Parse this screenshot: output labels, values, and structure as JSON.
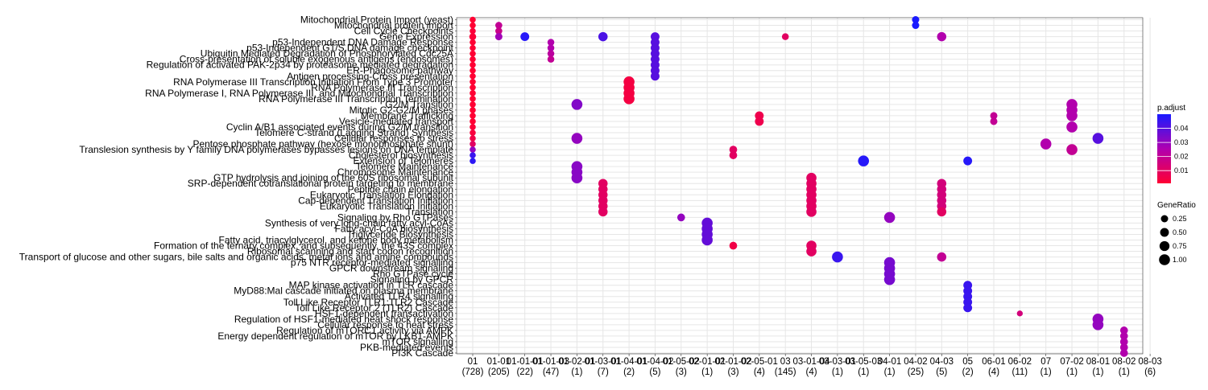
{
  "chart_data": {
    "type": "dotplot",
    "title": "",
    "xlabel": "",
    "ylabel": "",
    "grid": true,
    "legend_position": "right",
    "x_categories": [
      {
        "label": "01",
        "count": "(728)"
      },
      {
        "label": "01-01",
        "count": "(205)"
      },
      {
        "label": "01-01-01",
        "count": "(22)"
      },
      {
        "label": "01-01-03",
        "count": "(47)"
      },
      {
        "label": "01-02-01",
        "count": "(1)"
      },
      {
        "label": "01-03-01",
        "count": "(7)"
      },
      {
        "label": "01-04-01",
        "count": "(2)"
      },
      {
        "label": "01-04-02",
        "count": "(5)"
      },
      {
        "label": "01-05-02",
        "count": "(3)"
      },
      {
        "label": "02-01-01",
        "count": "(1)"
      },
      {
        "label": "02-01-02",
        "count": "(3)"
      },
      {
        "label": "02-05-01",
        "count": "(4)"
      },
      {
        "label": "03",
        "count": "(145)"
      },
      {
        "label": "03-01-04",
        "count": "(4)"
      },
      {
        "label": "03-03-01",
        "count": "(1)"
      },
      {
        "label": "03-05-03",
        "count": "(1)"
      },
      {
        "label": "04-01",
        "count": "(1)"
      },
      {
        "label": "04-02",
        "count": "(25)"
      },
      {
        "label": "04-03",
        "count": "(5)"
      },
      {
        "label": "05",
        "count": "(2)"
      },
      {
        "label": "06-01",
        "count": "(4)"
      },
      {
        "label": "06-02",
        "count": "(11)"
      },
      {
        "label": "07",
        "count": "(1)"
      },
      {
        "label": "07-02",
        "count": "(1)"
      },
      {
        "label": "08-01",
        "count": "(1)"
      },
      {
        "label": "08-02",
        "count": "(1)"
      },
      {
        "label": "08-03",
        "count": "(6)"
      }
    ],
    "y_terms": [
      "Mitochondrial Protein Import (yeast)",
      "Mitochondrial protein import",
      "Cell Cycle Checkpoints",
      "Gene Expression",
      "p53-Independent DNA Damage Response",
      "p53-Independent G1/S DNA damage checkpoint",
      "Ubiquitin Mediated Degradation of Phosphorylated Cdc25A",
      "Cross-presentation of soluble exogenous antigens (endosomes)",
      "Regulation of activated PAK-2p34 by proteasome mediated degradation",
      "ER-Phagosome pathway",
      "Antigen processing-Cross presentation",
      "RNA Polymerase III Transcription Initiation From Type 3 Promoter",
      "RNA Polymerase III Transcription",
      "RNA Polymerase I, RNA Polymerase III, and Mitochondrial Transcription",
      "RNA Polymerase III Transcription Termination",
      "G2/M Transition",
      "Mitotic G2-G2/M phases",
      "Membrane Trafficking",
      "Vesicle-mediated transport",
      "Cyclin A/B1 associated events during G2/M transition",
      "Telomere C-strand (Lagging Strand) Synthesis",
      "Cellular responses to stress",
      "Pentose phosphate pathway (hexose monophosphate shunt)",
      "Translesion synthesis by Y family DNA polymerases bypasses lesions on DNA template",
      "Cholesterol biosynthesis",
      "Extension of Telomeres",
      "Telomere Maintenance",
      "Chromosome Maintenance",
      "GTP hydrolysis and joining of the 60S ribosomal subunit",
      "SRP-dependent cotranslational protein targeting to membrane",
      "Peptide chain elongation",
      "Eukaryotic Translation Elongation",
      "Cap-dependent Translation Initiation",
      "Eukaryotic Translation Initiation",
      "Translation",
      "Signaling by Rho GTPases",
      "Synthesis of very long-chain fatty acyl-CoAs",
      "Fatty acyl-CoA biosynthesis",
      "Triglyceride Biosynthesis",
      "Fatty acid, triacylglycerol, and ketone body metabolism",
      "Formation of the ternary complex, and subsequently, the 43S complex",
      "Ribosomal scanning and start codon recognition",
      "Transport of glucose and other sugars, bile salts and organic acids, metal ions and amine compounds",
      "p75 NTR receptor-mediated signalling",
      "GPCR downstream signaling",
      "Rho GTPase cycle",
      "Signaling by GPCR",
      "MAP kinase activation in TLR cascade",
      "MyD88:Mal cascade initiated on plasma membrane",
      "Activated TLR4 signalling",
      "Toll Like Receptor TLR1:TLR2 Cascade",
      "Toll Like Receptor 2 (TLR2) Cascade",
      "HSF1-dependent transactivation",
      "Regulation of HSF1-mediated heat shock response",
      "Cellular response to heat stress",
      "Regulation of mTORC1 activity via AMPK",
      "Energy dependent regulation of mTOR by LKB1-AMPK",
      "mTOR signalling",
      "PKB-mediated events",
      "PI3K Cascade"
    ],
    "points": [
      {
        "x": 0,
        "y": 0,
        "size": 0.12,
        "padj": 0.001
      },
      {
        "x": 0,
        "y": 1,
        "size": 0.12,
        "padj": 0.001
      },
      {
        "x": 0,
        "y": 2,
        "size": 0.12,
        "padj": 0.002
      },
      {
        "x": 0,
        "y": 3,
        "size": 0.2,
        "padj": 0.002
      },
      {
        "x": 0,
        "y": 4,
        "size": 0.12,
        "padj": 0.001
      },
      {
        "x": 0,
        "y": 5,
        "size": 0.12,
        "padj": 0.001
      },
      {
        "x": 0,
        "y": 6,
        "size": 0.12,
        "padj": 0.001
      },
      {
        "x": 0,
        "y": 7,
        "size": 0.12,
        "padj": 0.001
      },
      {
        "x": 0,
        "y": 8,
        "size": 0.12,
        "padj": 0.001
      },
      {
        "x": 0,
        "y": 9,
        "size": 0.12,
        "padj": 0.001
      },
      {
        "x": 0,
        "y": 10,
        "size": 0.12,
        "padj": 0.001
      },
      {
        "x": 0,
        "y": 11,
        "size": 0.12,
        "padj": 0.001
      },
      {
        "x": 0,
        "y": 12,
        "size": 0.12,
        "padj": 0.001
      },
      {
        "x": 0,
        "y": 13,
        "size": 0.12,
        "padj": 0.001
      },
      {
        "x": 0,
        "y": 14,
        "size": 0.12,
        "padj": 0.001
      },
      {
        "x": 0,
        "y": 15,
        "size": 0.12,
        "padj": 0.001
      },
      {
        "x": 0,
        "y": 16,
        "size": 0.12,
        "padj": 0.001
      },
      {
        "x": 0,
        "y": 17,
        "size": 0.12,
        "padj": 0.001
      },
      {
        "x": 0,
        "y": 18,
        "size": 0.12,
        "padj": 0.001
      },
      {
        "x": 0,
        "y": 19,
        "size": 0.12,
        "padj": 0.002
      },
      {
        "x": 0,
        "y": 20,
        "size": 0.12,
        "padj": 0.003
      },
      {
        "x": 0,
        "y": 21,
        "size": 0.12,
        "padj": 0.005
      },
      {
        "x": 0,
        "y": 22,
        "size": 0.12,
        "padj": 0.01
      },
      {
        "x": 0,
        "y": 23,
        "size": 0.12,
        "padj": 0.03
      },
      {
        "x": 0,
        "y": 24,
        "size": 0.12,
        "padj": 0.045
      },
      {
        "x": 0,
        "y": 25,
        "size": 0.12,
        "padj": 0.047
      },
      {
        "x": 1,
        "y": 1,
        "size": 0.22,
        "padj": 0.02
      },
      {
        "x": 1,
        "y": 2,
        "size": 0.22,
        "padj": 0.018
      },
      {
        "x": 1,
        "y": 3,
        "size": 0.25,
        "padj": 0.028
      },
      {
        "x": 2,
        "y": 3,
        "size": 0.5,
        "padj": 0.048
      },
      {
        "x": 3,
        "y": 4,
        "size": 0.2,
        "padj": 0.025
      },
      {
        "x": 3,
        "y": 5,
        "size": 0.2,
        "padj": 0.025
      },
      {
        "x": 3,
        "y": 6,
        "size": 0.2,
        "padj": 0.022
      },
      {
        "x": 3,
        "y": 7,
        "size": 0.2,
        "padj": 0.02
      },
      {
        "x": 4,
        "y": 15,
        "size": 1,
        "padj": 0.033
      },
      {
        "x": 4,
        "y": 21,
        "size": 1,
        "padj": 0.03
      },
      {
        "x": 4,
        "y": 26,
        "size": 1,
        "padj": 0.032
      },
      {
        "x": 4,
        "y": 27,
        "size": 1,
        "padj": 0.032
      },
      {
        "x": 4,
        "y": 28,
        "size": 1,
        "padj": 0.032
      },
      {
        "x": 5,
        "y": 3,
        "size": 0.6,
        "padj": 0.042
      },
      {
        "x": 5,
        "y": 29,
        "size": 0.6,
        "padj": 0.01
      },
      {
        "x": 5,
        "y": 30,
        "size": 0.6,
        "padj": 0.01
      },
      {
        "x": 5,
        "y": 31,
        "size": 0.6,
        "padj": 0.01
      },
      {
        "x": 5,
        "y": 32,
        "size": 0.6,
        "padj": 0.01
      },
      {
        "x": 5,
        "y": 33,
        "size": 0.6,
        "padj": 0.01
      },
      {
        "x": 5,
        "y": 34,
        "size": 0.6,
        "padj": 0.01
      },
      {
        "x": 6,
        "y": 11,
        "size": 1,
        "padj": 0.004
      },
      {
        "x": 6,
        "y": 12,
        "size": 1,
        "padj": 0.004
      },
      {
        "x": 6,
        "y": 13,
        "size": 1,
        "padj": 0.004
      },
      {
        "x": 6,
        "y": 14,
        "size": 1,
        "padj": 0.004
      },
      {
        "x": 7,
        "y": 3,
        "size": 0.5,
        "padj": 0.04
      },
      {
        "x": 7,
        "y": 4,
        "size": 0.5,
        "padj": 0.04
      },
      {
        "x": 7,
        "y": 5,
        "size": 0.5,
        "padj": 0.04
      },
      {
        "x": 7,
        "y": 6,
        "size": 0.5,
        "padj": 0.04
      },
      {
        "x": 7,
        "y": 7,
        "size": 0.5,
        "padj": 0.04
      },
      {
        "x": 7,
        "y": 8,
        "size": 0.5,
        "padj": 0.04
      },
      {
        "x": 7,
        "y": 9,
        "size": 0.5,
        "padj": 0.04
      },
      {
        "x": 7,
        "y": 10,
        "size": 0.5,
        "padj": 0.04
      },
      {
        "x": 8,
        "y": 35,
        "size": 0.33,
        "padj": 0.03
      },
      {
        "x": 9,
        "y": 36,
        "size": 1,
        "padj": 0.038
      },
      {
        "x": 9,
        "y": 37,
        "size": 1,
        "padj": 0.038
      },
      {
        "x": 9,
        "y": 38,
        "size": 1,
        "padj": 0.038
      },
      {
        "x": 9,
        "y": 39,
        "size": 1,
        "padj": 0.038
      },
      {
        "x": 10,
        "y": 23,
        "size": 0.33,
        "padj": 0.01
      },
      {
        "x": 10,
        "y": 24,
        "size": 0.33,
        "padj": 0.01
      },
      {
        "x": 10,
        "y": 40,
        "size": 0.33,
        "padj": 0.005
      },
      {
        "x": 11,
        "y": 17,
        "size": 0.5,
        "padj": 0.006
      },
      {
        "x": 11,
        "y": 18,
        "size": 0.5,
        "padj": 0.006
      },
      {
        "x": 12,
        "y": 3,
        "size": 0.2,
        "padj": 0.01
      },
      {
        "x": 13,
        "y": 28,
        "size": 0.8,
        "padj": 0.01
      },
      {
        "x": 13,
        "y": 29,
        "size": 0.8,
        "padj": 0.01
      },
      {
        "x": 13,
        "y": 30,
        "size": 0.8,
        "padj": 0.01
      },
      {
        "x": 13,
        "y": 31,
        "size": 0.8,
        "padj": 0.01
      },
      {
        "x": 13,
        "y": 32,
        "size": 0.8,
        "padj": 0.01
      },
      {
        "x": 13,
        "y": 33,
        "size": 0.8,
        "padj": 0.01
      },
      {
        "x": 13,
        "y": 34,
        "size": 0.8,
        "padj": 0.01
      },
      {
        "x": 13,
        "y": 40,
        "size": 0.8,
        "padj": 0.01
      },
      {
        "x": 13,
        "y": 41,
        "size": 0.8,
        "padj": 0.01
      },
      {
        "x": 14,
        "y": 42,
        "size": 1,
        "padj": 0.045
      },
      {
        "x": 15,
        "y": 25,
        "size": 1,
        "padj": 0.048
      },
      {
        "x": 16,
        "y": 35,
        "size": 1,
        "padj": 0.03
      },
      {
        "x": 16,
        "y": 43,
        "size": 1,
        "padj": 0.035
      },
      {
        "x": 16,
        "y": 44,
        "size": 1,
        "padj": 0.035
      },
      {
        "x": 16,
        "y": 45,
        "size": 1,
        "padj": 0.035
      },
      {
        "x": 16,
        "y": 46,
        "size": 1,
        "padj": 0.035
      },
      {
        "x": 17,
        "y": 0,
        "size": 0.25,
        "padj": 0.05
      },
      {
        "x": 17,
        "y": 1,
        "size": 0.25,
        "padj": 0.05
      },
      {
        "x": 18,
        "y": 3,
        "size": 0.6,
        "padj": 0.025
      },
      {
        "x": 18,
        "y": 29,
        "size": 0.6,
        "padj": 0.015
      },
      {
        "x": 18,
        "y": 30,
        "size": 0.6,
        "padj": 0.015
      },
      {
        "x": 18,
        "y": 31,
        "size": 0.6,
        "padj": 0.015
      },
      {
        "x": 18,
        "y": 32,
        "size": 0.6,
        "padj": 0.015
      },
      {
        "x": 18,
        "y": 33,
        "size": 0.6,
        "padj": 0.015
      },
      {
        "x": 18,
        "y": 34,
        "size": 0.6,
        "padj": 0.01
      },
      {
        "x": 18,
        "y": 42,
        "size": 0.6,
        "padj": 0.02
      },
      {
        "x": 19,
        "y": 25,
        "size": 0.5,
        "padj": 0.048
      },
      {
        "x": 19,
        "y": 47,
        "size": 0.5,
        "padj": 0.045
      },
      {
        "x": 19,
        "y": 48,
        "size": 0.5,
        "padj": 0.045
      },
      {
        "x": 19,
        "y": 49,
        "size": 0.5,
        "padj": 0.045
      },
      {
        "x": 19,
        "y": 50,
        "size": 0.5,
        "padj": 0.045
      },
      {
        "x": 19,
        "y": 51,
        "size": 0.5,
        "padj": 0.045
      },
      {
        "x": 20,
        "y": 17,
        "size": 0.25,
        "padj": 0.02
      },
      {
        "x": 20,
        "y": 18,
        "size": 0.25,
        "padj": 0.02
      },
      {
        "x": 21,
        "y": 52,
        "size": 0.1,
        "padj": 0.015
      },
      {
        "x": 22,
        "y": 22,
        "size": 1,
        "padj": 0.025
      },
      {
        "x": 23,
        "y": 15,
        "size": 1,
        "padj": 0.025
      },
      {
        "x": 23,
        "y": 16,
        "size": 1,
        "padj": 0.025
      },
      {
        "x": 23,
        "y": 17,
        "size": 1,
        "padj": 0.025
      },
      {
        "x": 23,
        "y": 19,
        "size": 1,
        "padj": 0.025
      },
      {
        "x": 23,
        "y": 23,
        "size": 1,
        "padj": 0.02
      },
      {
        "x": 24,
        "y": 21,
        "size": 1,
        "padj": 0.04
      },
      {
        "x": 24,
        "y": 53,
        "size": 1,
        "padj": 0.03
      },
      {
        "x": 24,
        "y": 54,
        "size": 1,
        "padj": 0.03
      },
      {
        "x": 25,
        "y": 55,
        "size": 0.33,
        "padj": 0.025
      },
      {
        "x": 25,
        "y": 56,
        "size": 0.33,
        "padj": 0.025
      },
      {
        "x": 25,
        "y": 57,
        "size": 0.33,
        "padj": 0.025
      },
      {
        "x": 25,
        "y": 58,
        "size": 0.33,
        "padj": 0.025
      },
      {
        "x": 25,
        "y": 59,
        "size": 0.33,
        "padj": 0.025
      }
    ],
    "color_legend": {
      "title": "p.adjust",
      "low_color": "#ff0033",
      "mid_color": "#b000b0",
      "high_color": "#1a1aff",
      "ticks": [
        0.01,
        0.02,
        0.03,
        0.04
      ],
      "range": [
        0.001,
        0.05
      ]
    },
    "size_legend": {
      "title": "GeneRatio",
      "ticks": [
        0.25,
        0.5,
        0.75,
        1.0
      ],
      "tick_labels": [
        "0.25",
        "0.50",
        "0.75",
        "1.00"
      ]
    }
  }
}
